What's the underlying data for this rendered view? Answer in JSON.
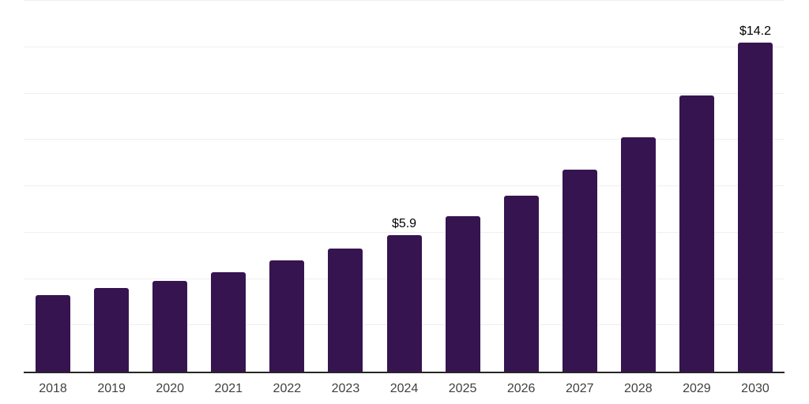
{
  "chart_data": {
    "type": "bar",
    "title": "",
    "xlabel": "",
    "ylabel": "",
    "categories": [
      "2018",
      "2019",
      "2020",
      "2021",
      "2022",
      "2023",
      "2024",
      "2025",
      "2026",
      "2027",
      "2028",
      "2029",
      "2030"
    ],
    "values": [
      3.3,
      3.6,
      3.9,
      4.3,
      4.8,
      5.3,
      5.9,
      6.7,
      7.6,
      8.7,
      10.1,
      11.9,
      14.2
    ],
    "data_labels": {
      "2024": "$5.9",
      "2030": "$14.2"
    },
    "ylim": [
      0,
      16
    ],
    "gridline_step": 2,
    "grid": true,
    "legend": false,
    "y_axis_labels_visible": false,
    "colors": {
      "bar": "#361450",
      "axis_line": "#262626",
      "gridline": "#efefef",
      "data_label": "#000000",
      "tick_label": "#404040",
      "background": "#ffffff"
    }
  }
}
